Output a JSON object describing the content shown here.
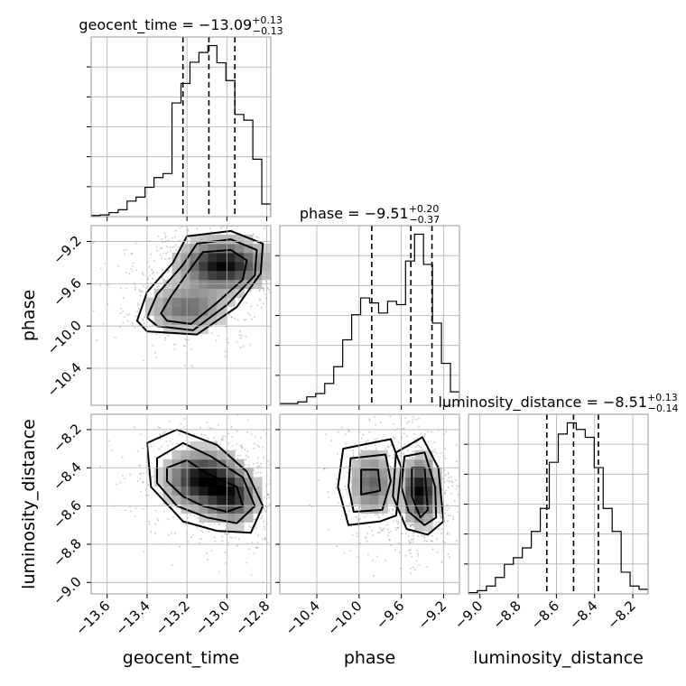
{
  "chart_data": {
    "type": "corner",
    "parameters": [
      {
        "name": "geocent_time",
        "axis_label": "geocent_time",
        "range": [
          -13.68,
          -12.78
        ],
        "ticks": [
          "−13.6",
          "−13.4",
          "−13.2",
          "−13.0",
          "−12.8"
        ],
        "tick_values": [
          -13.6,
          -13.4,
          -13.2,
          -13.0,
          -12.8
        ],
        "title": {
          "prefix": "geocent_time = ",
          "median": "−13.09",
          "plus": "+0.13",
          "minus": "−0.13"
        },
        "quantiles": [
          -13.22,
          -13.09,
          -12.96
        ],
        "histogram": {
          "edges": [
            -13.68,
            -13.635,
            -13.59,
            -13.545,
            -13.5,
            -13.455,
            -13.41,
            -13.365,
            -13.32,
            -13.275,
            -13.23,
            -13.185,
            -13.14,
            -13.095,
            -13.05,
            -13.005,
            -12.96,
            -12.915,
            -12.87,
            -12.825,
            -12.78
          ],
          "counts": [
            0.2,
            0.3,
            0.7,
            1.2,
            2.7,
            3.4,
            5.1,
            6.8,
            7.5,
            19.8,
            23.2,
            26.9,
            28.6,
            29.8,
            26.8,
            23.7,
            17.8,
            16.8,
            10.0,
            2.2
          ]
        }
      },
      {
        "name": "phase",
        "axis_label": "phase",
        "range": [
          -10.75,
          -9.05
        ],
        "ticks": [
          "−10.4",
          "−10.0",
          "−9.6",
          "−9.2"
        ],
        "tick_values": [
          -10.4,
          -10.0,
          -9.6,
          -9.2
        ],
        "title": {
          "prefix": "phase = ",
          "median": "−9.51",
          "plus": "+0.20",
          "minus": "−0.37"
        },
        "quantiles": [
          -9.88,
          -9.51,
          -9.31
        ],
        "histogram": {
          "edges": [
            -10.75,
            -10.665,
            -10.58,
            -10.495,
            -10.41,
            -10.325,
            -10.24,
            -10.155,
            -10.07,
            -9.985,
            -9.9,
            -9.815,
            -9.73,
            -9.645,
            -9.56,
            -9.475,
            -9.39,
            -9.305,
            -9.22,
            -9.135,
            -9.05
          ],
          "counts": [
            0.5,
            0.5,
            1.0,
            2.5,
            3.5,
            6.5,
            11.5,
            19.5,
            27.0,
            32.0,
            30.5,
            27.5,
            31.0,
            30.0,
            43.0,
            51.0,
            42.0,
            24.5,
            12.5,
            4.0
          ]
        }
      },
      {
        "name": "luminosity_distance",
        "axis_label": "luminosity_distance",
        "range": [
          -9.06,
          -8.12
        ],
        "ticks": [
          "−9.0",
          "−8.8",
          "−8.6",
          "−8.4",
          "−8.2"
        ],
        "tick_values": [
          -9.0,
          -8.8,
          -8.6,
          -8.4,
          -8.2
        ],
        "title": {
          "prefix": "luminosity_distance = ",
          "median": "−8.51",
          "plus": "+0.13",
          "minus": "−0.14"
        },
        "quantiles": [
          -8.65,
          -8.51,
          -8.38
        ],
        "histogram": {
          "edges": [
            -9.06,
            -9.013,
            -8.966,
            -8.919,
            -8.872,
            -8.825,
            -8.778,
            -8.731,
            -8.684,
            -8.637,
            -8.59,
            -8.543,
            -8.496,
            -8.449,
            -8.402,
            -8.355,
            -8.308,
            -8.261,
            -8.214,
            -8.167,
            -8.12
          ],
          "counts": [
            0.2,
            0.5,
            1.2,
            2.5,
            4.5,
            5.5,
            7.0,
            9.5,
            13.0,
            20.0,
            24.3,
            26.0,
            25.0,
            23.8,
            19.2,
            13.0,
            9.5,
            3.3,
            1.2,
            0.7
          ]
        }
      }
    ],
    "joint_2d": [
      {
        "x": "geocent_time",
        "y": "phase",
        "peaks": [
          {
            "x": -13.02,
            "y": -9.42,
            "sx": 0.13,
            "sy": 0.14,
            "w": 1.0
          },
          {
            "x": -13.2,
            "y": -9.83,
            "sx": 0.12,
            "sy": 0.13,
            "w": 0.55
          }
        ],
        "contours": [
          [
            [
              -13.3,
              -9.95
            ],
            [
              -13.18,
              -9.98
            ],
            [
              -13.05,
              -9.78
            ],
            [
              -12.92,
              -9.56
            ],
            [
              -12.9,
              -9.38
            ],
            [
              -12.98,
              -9.28
            ],
            [
              -13.12,
              -9.3
            ],
            [
              -13.18,
              -9.45
            ],
            [
              -13.28,
              -9.72
            ],
            [
              -13.33,
              -9.88
            ]
          ],
          [
            [
              -13.35,
              -10.0
            ],
            [
              -13.17,
              -10.04
            ],
            [
              -13.0,
              -9.8
            ],
            [
              -12.86,
              -9.52
            ],
            [
              -12.85,
              -9.28
            ],
            [
              -12.98,
              -9.18
            ],
            [
              -13.15,
              -9.22
            ],
            [
              -13.22,
              -9.42
            ],
            [
              -13.35,
              -9.7
            ],
            [
              -13.4,
              -9.92
            ]
          ],
          [
            [
              -13.4,
              -10.05
            ],
            [
              -13.15,
              -10.08
            ],
            [
              -12.95,
              -9.82
            ],
            [
              -12.83,
              -9.5
            ],
            [
              -12.82,
              -9.22
            ],
            [
              -12.98,
              -9.1
            ],
            [
              -13.2,
              -9.15
            ],
            [
              -13.27,
              -9.4
            ],
            [
              -13.4,
              -9.68
            ],
            [
              -13.45,
              -9.95
            ]
          ]
        ]
      },
      {
        "x": "geocent_time",
        "y": "luminosity_distance",
        "peaks": [
          {
            "x": -13.12,
            "y": -8.46,
            "sx": 0.11,
            "sy": 0.09,
            "w": 1.0
          },
          {
            "x": -12.97,
            "y": -8.56,
            "sx": 0.08,
            "sy": 0.08,
            "w": 0.7
          }
        ],
        "contours": [
          [
            [
              -13.3,
              -8.4
            ],
            [
              -13.2,
              -8.36
            ],
            [
              -13.1,
              -8.43
            ],
            [
              -12.95,
              -8.5
            ],
            [
              -12.92,
              -8.6
            ],
            [
              -13.0,
              -8.63
            ],
            [
              -13.12,
              -8.6
            ],
            [
              -13.22,
              -8.55
            ],
            [
              -13.3,
              -8.47
            ]
          ],
          [
            [
              -13.35,
              -8.35
            ],
            [
              -13.22,
              -8.27
            ],
            [
              -13.08,
              -8.34
            ],
            [
              -12.92,
              -8.45
            ],
            [
              -12.86,
              -8.6
            ],
            [
              -12.95,
              -8.69
            ],
            [
              -13.1,
              -8.66
            ],
            [
              -13.25,
              -8.6
            ],
            [
              -13.35,
              -8.48
            ]
          ],
          [
            [
              -13.4,
              -8.27
            ],
            [
              -13.25,
              -8.2
            ],
            [
              -13.05,
              -8.28
            ],
            [
              -12.9,
              -8.42
            ],
            [
              -12.82,
              -8.6
            ],
            [
              -12.88,
              -8.74
            ],
            [
              -13.05,
              -8.73
            ],
            [
              -13.22,
              -8.68
            ],
            [
              -13.38,
              -8.5
            ]
          ]
        ]
      },
      {
        "x": "phase",
        "y": "luminosity_distance",
        "peaks": [
          {
            "x": -9.88,
            "y": -8.48,
            "sx": 0.12,
            "sy": 0.1,
            "w": 0.6
          },
          {
            "x": -9.42,
            "y": -8.52,
            "sx": 0.1,
            "sy": 0.1,
            "w": 1.0
          }
        ],
        "contours": [
          [
            [
              -9.98,
              -8.41
            ],
            [
              -9.82,
              -8.41
            ],
            [
              -9.8,
              -8.52
            ],
            [
              -9.98,
              -8.54
            ]
          ],
          [
            [
              -9.5,
              -8.4
            ],
            [
              -9.38,
              -8.4
            ],
            [
              -9.35,
              -8.62
            ],
            [
              -9.42,
              -8.66
            ],
            [
              -9.5,
              -8.55
            ]
          ],
          [
            [
              -10.08,
              -8.35
            ],
            [
              -9.75,
              -8.33
            ],
            [
              -9.7,
              -8.47
            ],
            [
              -9.78,
              -8.62
            ],
            [
              -10.05,
              -8.63
            ],
            [
              -10.1,
              -8.5
            ]
          ],
          [
            [
              -9.57,
              -8.34
            ],
            [
              -9.38,
              -8.32
            ],
            [
              -9.28,
              -8.5
            ],
            [
              -9.27,
              -8.66
            ],
            [
              -9.38,
              -8.7
            ],
            [
              -9.53,
              -8.63
            ],
            [
              -9.6,
              -8.5
            ]
          ],
          [
            [
              -10.15,
              -8.3
            ],
            [
              -9.7,
              -8.25
            ],
            [
              -9.6,
              -8.4
            ],
            [
              -9.65,
              -8.65
            ],
            [
              -9.8,
              -8.68
            ],
            [
              -10.1,
              -8.7
            ],
            [
              -10.2,
              -8.5
            ]
          ],
          [
            [
              -9.65,
              -8.32
            ],
            [
              -9.4,
              -8.24
            ],
            [
              -9.25,
              -8.4
            ],
            [
              -9.2,
              -8.68
            ],
            [
              -9.35,
              -8.75
            ],
            [
              -9.55,
              -8.72
            ],
            [
              -9.68,
              -8.55
            ]
          ]
        ]
      }
    ]
  }
}
